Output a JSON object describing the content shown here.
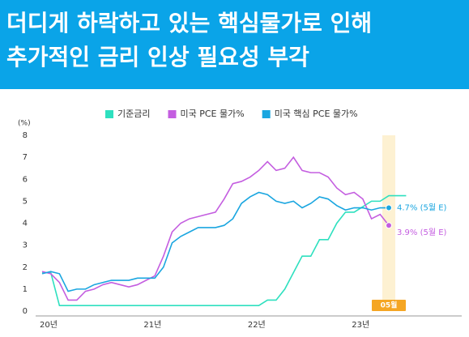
{
  "title_lines": [
    "더디게 하락하고 있는 핵심물가로 인해",
    "추가적인 금리 인상 필요성 부각"
  ],
  "chart_data": {
    "type": "line",
    "y_label": "(%)",
    "categories": [
      "20년",
      null,
      null,
      null,
      null,
      null,
      null,
      null,
      null,
      null,
      null,
      null,
      "21년",
      null,
      null,
      null,
      null,
      null,
      null,
      null,
      null,
      null,
      null,
      null,
      "22년",
      null,
      null,
      null,
      null,
      null,
      null,
      null,
      null,
      null,
      null,
      null,
      "23년",
      null,
      null,
      null,
      null,
      null,
      null
    ],
    "series": [
      {
        "name": "기준금리",
        "color": "#2ee0bf",
        "values": [
          1.75,
          1.75,
          0.25,
          0.25,
          0.25,
          0.25,
          0.25,
          0.25,
          0.25,
          0.25,
          0.25,
          0.25,
          0.25,
          0.25,
          0.25,
          0.25,
          0.25,
          0.25,
          0.25,
          0.25,
          0.25,
          0.25,
          0.25,
          0.25,
          0.25,
          0.25,
          0.5,
          0.5,
          1.0,
          1.75,
          2.5,
          2.5,
          3.25,
          3.25,
          4.0,
          4.5,
          4.5,
          4.75,
          5.0,
          5.0,
          5.25,
          5.25,
          5.25
        ]
      },
      {
        "name": "미국 PCE 물가%",
        "color": "#c45ee0",
        "values": [
          1.8,
          1.7,
          1.3,
          0.5,
          0.5,
          0.9,
          1.0,
          1.2,
          1.3,
          1.2,
          1.1,
          1.2,
          1.4,
          1.6,
          2.5,
          3.6,
          4.0,
          4.2,
          4.3,
          4.4,
          4.5,
          5.1,
          5.8,
          5.9,
          6.1,
          6.4,
          6.8,
          6.4,
          6.5,
          7.0,
          6.4,
          6.3,
          6.3,
          6.1,
          5.6,
          5.3,
          5.4,
          5.1,
          4.2,
          4.4,
          3.9,
          null,
          null
        ]
      },
      {
        "name": "미국 핵심 PCE 물가%",
        "color": "#1aa6e0",
        "values": [
          1.7,
          1.8,
          1.7,
          0.9,
          1.0,
          1.0,
          1.2,
          1.3,
          1.4,
          1.4,
          1.4,
          1.5,
          1.5,
          1.5,
          2.0,
          3.1,
          3.4,
          3.6,
          3.8,
          3.8,
          3.8,
          3.9,
          4.2,
          4.9,
          5.2,
          5.4,
          5.3,
          5.0,
          4.9,
          5.0,
          4.7,
          4.9,
          5.2,
          5.1,
          4.8,
          4.6,
          4.7,
          4.7,
          4.6,
          4.7,
          4.7,
          null,
          null
        ]
      }
    ],
    "ylim": [
      0,
      8
    ],
    "yticks": [
      0,
      1,
      2,
      3,
      4,
      5,
      6,
      7,
      8
    ],
    "grid": false,
    "annotations": [
      "4.7% (5월 E)",
      "3.9% (5월 E)"
    ],
    "highlight_label": "05월"
  }
}
